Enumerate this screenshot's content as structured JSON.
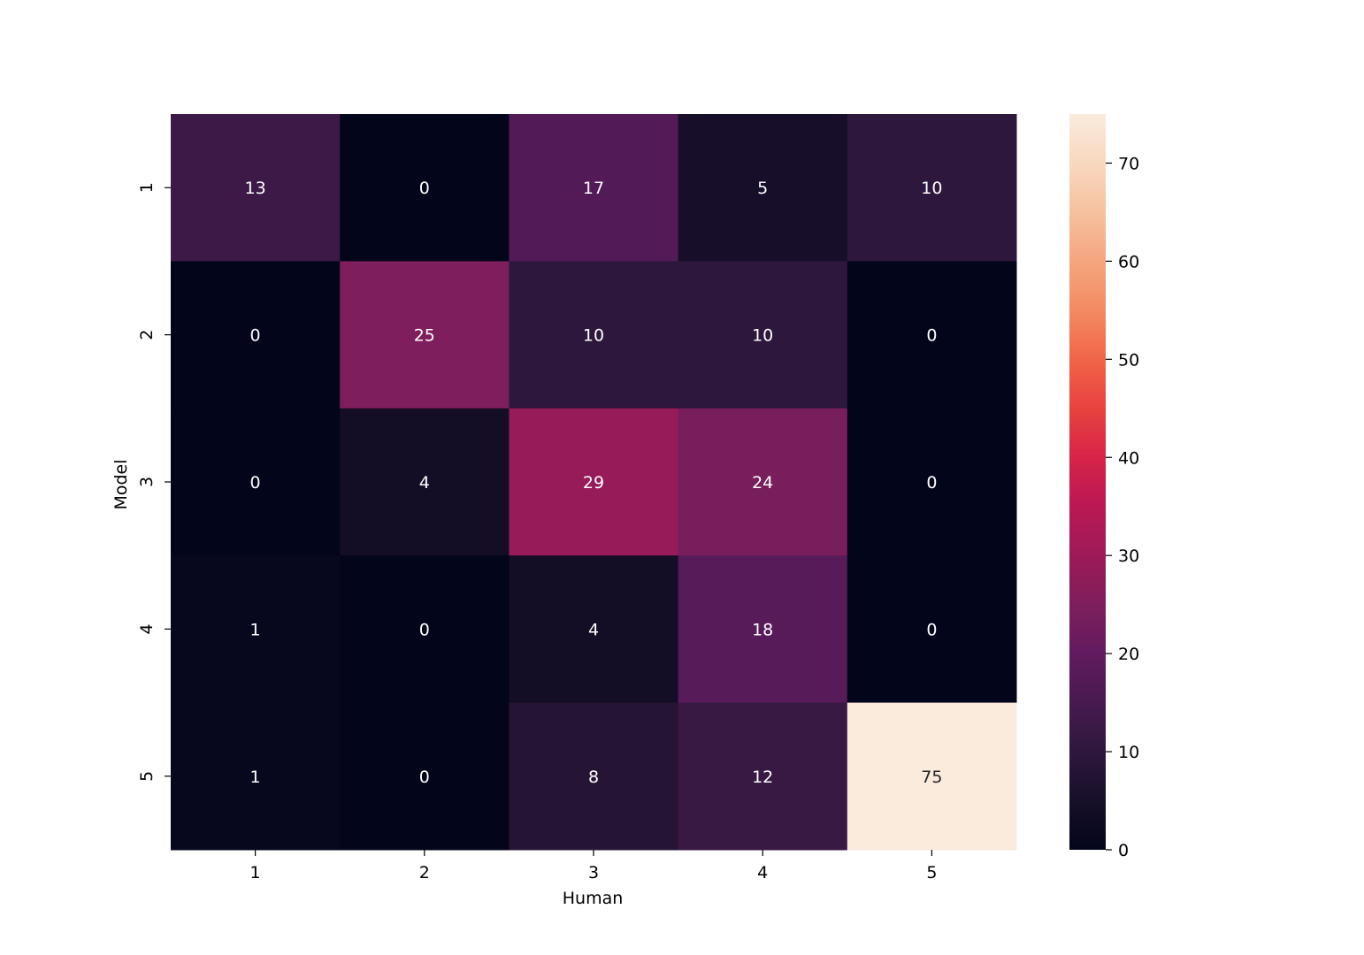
{
  "chart_data": {
    "type": "heatmap",
    "title": "",
    "xlabel": "Human",
    "ylabel": "Model",
    "x_categories": [
      "1",
      "2",
      "3",
      "4",
      "5"
    ],
    "y_categories": [
      "1",
      "2",
      "3",
      "4",
      "5"
    ],
    "values": [
      [
        13,
        0,
        17,
        5,
        10
      ],
      [
        0,
        25,
        10,
        10,
        0
      ],
      [
        0,
        4,
        29,
        24,
        0
      ],
      [
        1,
        0,
        4,
        18,
        0
      ],
      [
        1,
        0,
        8,
        12,
        75
      ]
    ],
    "colorbar": {
      "vmin": 0,
      "vmax": 75,
      "ticks": [
        0,
        10,
        20,
        30,
        40,
        50,
        60,
        70
      ],
      "colormap": "rocket"
    },
    "annotation_colors": {
      "light_text": "#ffffff",
      "dark_text": "#262626"
    }
  }
}
